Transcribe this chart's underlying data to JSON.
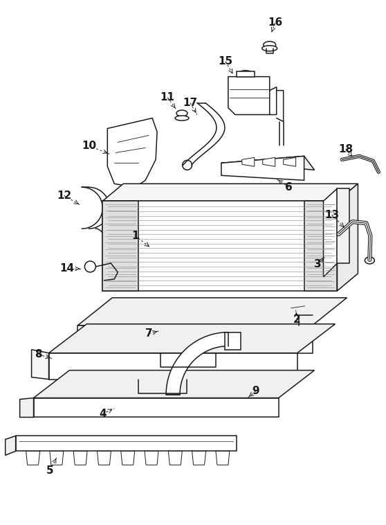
{
  "bg_color": "#ffffff",
  "line_color": "#1a1a1a",
  "fig_width": 5.58,
  "fig_height": 7.58,
  "dpi": 100
}
